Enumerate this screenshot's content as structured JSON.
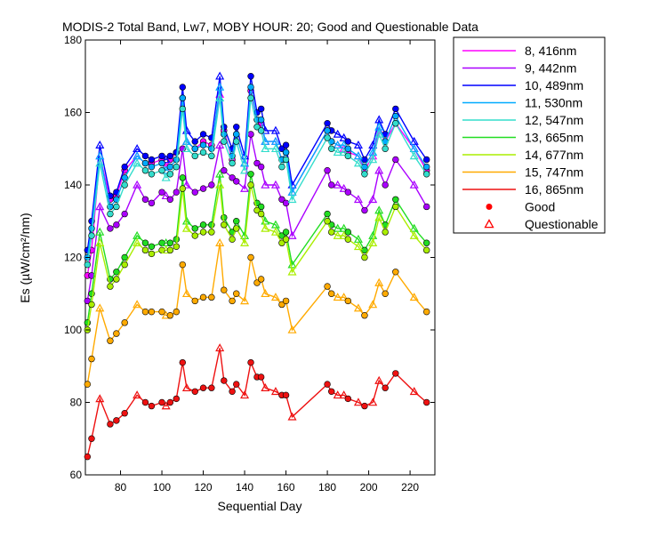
{
  "chart_data": {
    "type": "line",
    "title": "MODIS-2 Total Band,  Lw7, MOBY HOUR: 20;  Good and Questionable Data",
    "xlabel": "Sequential Day",
    "ylabel": "Es (µW/cm²/nm)",
    "xlim": [
      63,
      232
    ],
    "ylim": [
      60,
      180
    ],
    "xticks": [
      80,
      100,
      120,
      140,
      160,
      180,
      200,
      220
    ],
    "yticks": [
      60,
      80,
      100,
      120,
      140,
      160,
      180
    ],
    "grid": false,
    "legend_position": "outside-right-top",
    "x": [
      64,
      66,
      70,
      75,
      78,
      82,
      88,
      92,
      95,
      100,
      102,
      104,
      107,
      110,
      112,
      116,
      120,
      124,
      128,
      130,
      134,
      136,
      140,
      143,
      146,
      148,
      150,
      155,
      158,
      160,
      163,
      180,
      182,
      185,
      188,
      190,
      195,
      198,
      202,
      205,
      208,
      213,
      222,
      228
    ],
    "series": [
      {
        "name": "8, 416nm",
        "color": "#ff00ff",
        "values": [
          115,
          122,
          148,
          136,
          137,
          144,
          148,
          146,
          146,
          147,
          145,
          147,
          149,
          164,
          152,
          150,
          152,
          151,
          165,
          155,
          147,
          154,
          146,
          166,
          158,
          157,
          152,
          152,
          147,
          149,
          138,
          155,
          152,
          151,
          150,
          149,
          148,
          144,
          148,
          155,
          152,
          157,
          150,
          144
        ]
      },
      {
        "name": "9, 442nm",
        "color": "#aa00ff",
        "values": [
          108,
          115,
          134,
          128,
          129,
          132,
          140,
          136,
          135,
          138,
          137,
          136,
          138,
          150,
          140,
          138,
          139,
          140,
          151,
          144,
          142,
          141,
          139,
          154,
          146,
          145,
          140,
          140,
          136,
          135,
          126,
          144,
          140,
          140,
          139,
          138,
          136,
          133,
          136,
          144,
          140,
          147,
          140,
          134
        ]
      },
      {
        "name": "10, 489nm",
        "color": "#0000ff",
        "values": [
          122,
          130,
          151,
          137,
          138,
          145,
          150,
          148,
          147,
          148,
          147,
          148,
          149,
          167,
          155,
          152,
          154,
          153,
          170,
          156,
          150,
          156,
          148,
          170,
          160,
          161,
          155,
          155,
          150,
          151,
          140,
          157,
          155,
          154,
          153,
          152,
          151,
          147,
          151,
          158,
          154,
          161,
          152,
          147
        ]
      },
      {
        "name": "11, 530nm",
        "color": "#00aaff",
        "values": [
          120,
          128,
          148,
          134,
          136,
          142,
          148,
          146,
          145,
          146,
          144,
          145,
          147,
          164,
          152,
          150,
          151,
          150,
          167,
          154,
          148,
          154,
          146,
          167,
          158,
          158,
          152,
          152,
          147,
          149,
          138,
          155,
          152,
          151,
          151,
          150,
          148,
          145,
          149,
          156,
          152,
          159,
          150,
          145
        ]
      },
      {
        "name": "12, 547nm",
        "color": "#33ddcc",
        "values": [
          118,
          126,
          146,
          132,
          134,
          140,
          146,
          144,
          143,
          144,
          142,
          143,
          145,
          161,
          150,
          148,
          149,
          148,
          164,
          152,
          146,
          152,
          144,
          164,
          156,
          155,
          150,
          150,
          145,
          147,
          136,
          153,
          150,
          149,
          149,
          148,
          146,
          143,
          147,
          154,
          150,
          157,
          148,
          143
        ]
      },
      {
        "name": "13, 665nm",
        "color": "#22dd22",
        "values": [
          102,
          110,
          127,
          114,
          116,
          120,
          126,
          124,
          123,
          124,
          124,
          124,
          125,
          142,
          130,
          128,
          129,
          129,
          143,
          131,
          127,
          130,
          126,
          143,
          135,
          134,
          130,
          129,
          126,
          127,
          118,
          132,
          129,
          128,
          128,
          127,
          125,
          122,
          126,
          133,
          129,
          136,
          128,
          124
        ]
      },
      {
        "name": "14, 677nm",
        "color": "#aaee00",
        "values": [
          100,
          107,
          124,
          112,
          114,
          118,
          124,
          122,
          121,
          122,
          122,
          122,
          123,
          139,
          128,
          126,
          127,
          127,
          140,
          129,
          125,
          128,
          124,
          140,
          133,
          132,
          128,
          127,
          124,
          125,
          116,
          130,
          127,
          126,
          126,
          125,
          123,
          120,
          124,
          131,
          127,
          134,
          126,
          122
        ]
      },
      {
        "name": "15, 747nm",
        "color": "#ffaa00",
        "values": [
          85,
          92,
          106,
          97,
          99,
          102,
          107,
          105,
          105,
          105,
          104,
          104,
          105,
          118,
          110,
          108,
          109,
          109,
          124,
          111,
          108,
          110,
          108,
          120,
          113,
          114,
          110,
          109,
          107,
          108,
          100,
          112,
          110,
          109,
          109,
          108,
          106,
          104,
          107,
          113,
          110,
          116,
          109,
          105
        ]
      },
      {
        "name": "16, 865nm",
        "color": "#ee1111",
        "values": [
          65,
          70,
          81,
          74,
          75,
          77,
          82,
          80,
          79,
          80,
          79,
          80,
          81,
          91,
          84,
          83,
          84,
          84,
          95,
          86,
          83,
          85,
          82,
          91,
          87,
          87,
          84,
          83,
          82,
          82,
          76,
          85,
          83,
          82,
          82,
          81,
          80,
          79,
          80,
          86,
          84,
          88,
          83,
          80
        ]
      }
    ],
    "marker_legend": [
      {
        "label": "Good",
        "symbol": "filled-circle",
        "color": "#ff0000"
      },
      {
        "label": "Questionable",
        "symbol": "open-triangle",
        "color": "#ff0000"
      }
    ]
  }
}
